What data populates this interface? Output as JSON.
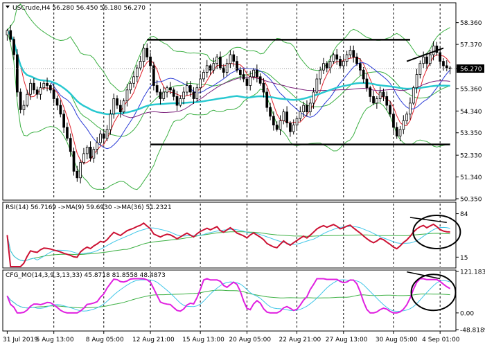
{
  "colors": {
    "background": "#ffffff",
    "bull_candle": "#ffffff",
    "bear_candle": "#000000",
    "bollinger": "#3cb043",
    "ma_fast": "#e0202a",
    "ma_blue": "#2a3bd6",
    "ma_purple": "#7a1f7a",
    "ma_cyan": "#28c8d0",
    "rsi_line": "#cc1133",
    "rsi_ma9": "#3fc6e8",
    "rsi_ma36": "#3cb043",
    "cfg_main": "#e020e0",
    "cfg_fast": "#3fc6e8",
    "cfg_slow": "#3cb043",
    "price_box": "#000000"
  },
  "chart_data": [
    {
      "type": "candlestick",
      "header": "USCrude,H4  56.280 56.450 56.180 56.270",
      "symbol": "USCrude,H4",
      "ohlc_last": {
        "open": 56.28,
        "high": 56.45,
        "low": 56.18,
        "close": 56.27
      },
      "current_price_label": "56.270",
      "ylim": [
        50.35,
        59.2
      ],
      "y_ticks": [
        "58.360",
        "57.370",
        "56.270",
        "55.360",
        "54.340",
        "53.350",
        "52.330",
        "51.340",
        "50.350"
      ],
      "x_ticks": [
        "31 Jul 2019",
        "5 Aug 13:00",
        "8 Aug 05:00",
        "12 Aug 21:00",
        "15 Aug 13:00",
        "20 Aug 05:00",
        "22 Aug 21:00",
        "27 Aug 13:00",
        "30 Aug 05:00",
        "4 Sep 01:00"
      ],
      "closes": [
        58.0,
        57.6,
        56.9,
        55.2,
        54.4,
        54.6,
        55.1,
        55.6,
        55.3,
        55.1,
        55.4,
        55.6,
        55.5,
        55.3,
        54.9,
        54.6,
        54.2,
        53.6,
        53.1,
        52.5,
        51.6,
        51.3,
        52.0,
        52.4,
        52.7,
        52.2,
        52.6,
        52.9,
        53.3,
        53.1,
        53.5,
        54.2,
        54.9,
        54.6,
        54.3,
        54.8,
        55.3,
        55.6,
        55.9,
        56.3,
        56.6,
        57.2,
        56.8,
        56.4,
        55.5,
        55.2,
        54.9,
        55.2,
        55.4,
        55.3,
        55.0,
        54.6,
        54.9,
        55.2,
        55.5,
        55.2,
        54.9,
        55.4,
        55.8,
        56.1,
        56.4,
        56.2,
        56.5,
        56.8,
        56.3,
        56.1,
        56.5,
        56.9,
        56.6,
        56.2,
        56.0,
        55.8,
        55.5,
        55.9,
        56.2,
        55.9,
        55.6,
        55.2,
        54.5,
        54.1,
        53.7,
        53.5,
        53.9,
        54.3,
        53.8,
        53.4,
        53.7,
        54.0,
        54.3,
        54.6,
        54.3,
        54.7,
        55.2,
        55.8,
        56.2,
        56.5,
        56.3,
        56.6,
        56.9,
        56.7,
        56.4,
        56.6,
        56.9,
        57.1,
        56.8,
        56.5,
        56.2,
        55.8,
        55.4,
        55.0,
        54.7,
        54.9,
        55.2,
        55.0,
        54.6,
        54.2,
        53.6,
        53.2,
        53.5,
        53.9,
        54.2,
        54.7,
        55.4,
        56.0,
        56.5,
        56.8,
        56.5,
        56.9,
        57.3,
        57.0,
        56.6,
        56.4,
        56.3,
        56.27
      ],
      "overlays": [
        {
          "kind": "bollinger",
          "period": 20
        },
        {
          "kind": "moving_average",
          "period": 5
        },
        {
          "kind": "moving_average",
          "period": 14
        },
        {
          "kind": "moving_average",
          "period": 35
        },
        {
          "kind": "moving_average",
          "period": 70
        }
      ],
      "annotations": {
        "channel_top_price": 57.58,
        "channel_bottom_price": 52.82,
        "trendline_price": [
          56.6,
          57.2
        ]
      }
    },
    {
      "type": "line",
      "header": "RSI(14) 56.7169  ->MA(9) 59.6930  ->MA(36) 51.2321",
      "ylim": [
        0,
        100
      ],
      "y_ticks": [
        "84",
        "15"
      ],
      "series": [
        {
          "name": "RSI(14) 56.7169",
          "values": []
        },
        {
          "name": "MA(9) 59.6930",
          "values": []
        },
        {
          "name": "MA(36) 51.2321",
          "values": []
        }
      ]
    },
    {
      "type": "line",
      "header": "CFG_MO(14,3,9,3,13,33) 45.8718 81.8558 48.4873",
      "ylim": [
        -48.8189,
        121.1836
      ],
      "y_ticks": [
        "121.1836",
        "0.00",
        "-48.8189"
      ],
      "series": [
        {
          "name": "CFG_MO",
          "values": []
        }
      ]
    }
  ]
}
